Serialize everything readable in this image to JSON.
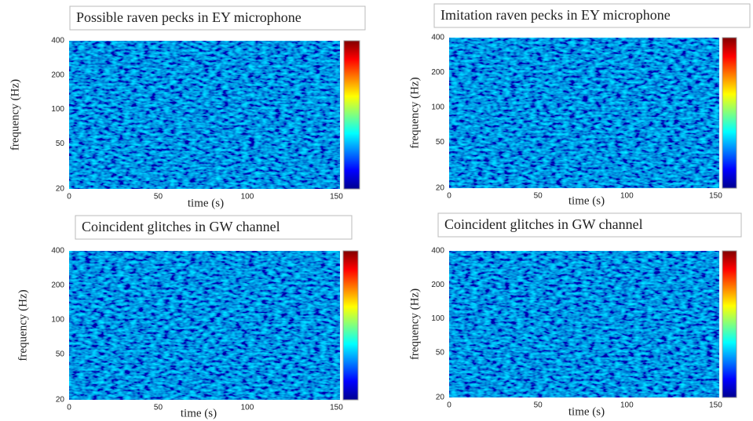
{
  "chart_data": [
    {
      "type": "spectrogram",
      "title": "Possible raven pecks in EY microphone",
      "xlabel": "time (s)",
      "ylabel": "frequency (Hz)",
      "xlim": [
        0,
        152
      ],
      "xticks": [
        0,
        50,
        100,
        150
      ],
      "ylim": [
        20,
        400
      ],
      "yticks": [
        20,
        50,
        100,
        200,
        400
      ],
      "log_y": true,
      "colormap": "jet",
      "colorbar": true
    },
    {
      "type": "spectrogram",
      "title": "Imitation raven pecks in EY microphone",
      "xlabel": "time (s)",
      "ylabel": "frequency (Hz)",
      "xlim": [
        0,
        152
      ],
      "xticks": [
        0,
        50,
        100,
        150
      ],
      "ylim": [
        20,
        400
      ],
      "yticks": [
        20,
        50,
        100,
        200,
        400
      ],
      "log_y": true,
      "colormap": "jet",
      "colorbar": true
    },
    {
      "type": "spectrogram",
      "title": "Coincident glitches in GW channel",
      "xlabel": "time (s)",
      "ylabel": "frequency (Hz)",
      "xlim": [
        0,
        152
      ],
      "xticks": [
        0,
        50,
        100,
        150
      ],
      "ylim": [
        20,
        400
      ],
      "yticks": [
        20,
        50,
        100,
        200,
        400
      ],
      "log_y": true,
      "colormap": "jet",
      "colorbar": true
    },
    {
      "type": "spectrogram",
      "title": "Coincident glitches in GW channel",
      "xlabel": "time (s)",
      "ylabel": "frequency (Hz)",
      "xlim": [
        0,
        152
      ],
      "xticks": [
        0,
        50,
        100,
        150
      ],
      "ylim": [
        20,
        400
      ],
      "yticks": [
        20,
        50,
        100,
        200,
        400
      ],
      "log_y": true,
      "colormap": "jet",
      "colorbar": true
    }
  ]
}
